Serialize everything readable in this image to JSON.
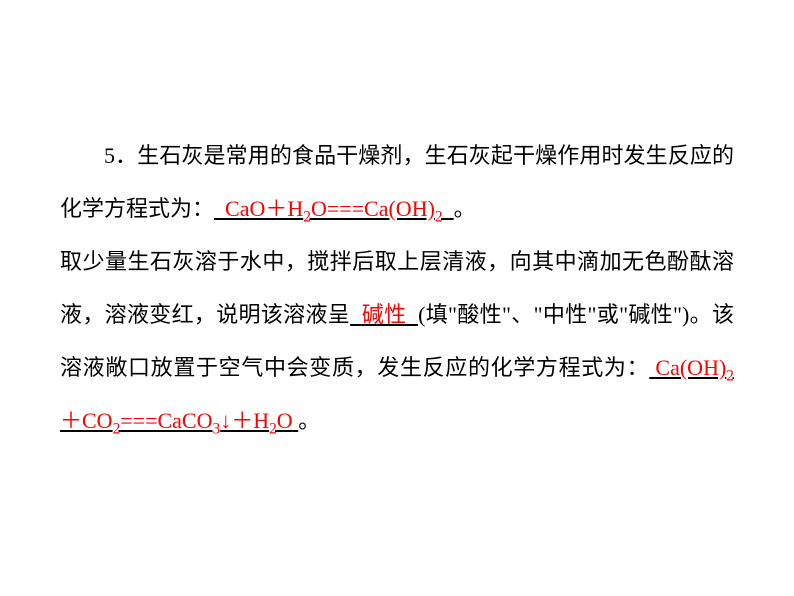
{
  "question": {
    "number": "5．",
    "part1_before": "生石灰是常用的食品干燥剂，生石灰起干燥作用时发生反应的化学方程式为：",
    "part1_after": "。",
    "part2_before": "取少量生石灰溶于水中，搅拌后取上层清液，向其中滴加无色酚酞溶液，溶液变红，说明该溶液呈",
    "part2_after": "(填\"酸性\"、\"中性\"或\"碱性\")。该溶液敞口放置于空气中会变质，发生反应的化学方程式为：",
    "part3_after": "。"
  },
  "answers": {
    "equation1_prefix": "CaO＋H",
    "equation1_sub1": "2",
    "equation1_mid": "O===Ca(OH)",
    "equation1_sub2": "2",
    "blank2": "碱性",
    "equation2_prefix": "Ca(OH)",
    "equation2_sub1": "2",
    "equation2_mid1": "＋CO",
    "equation2_sub2": "2",
    "equation2_mid2": "===CaCO",
    "equation2_sub3": "3",
    "equation2_mid3": "↓＋H",
    "equation2_sub4": "2",
    "equation2_suffix": "O"
  },
  "blanks": {
    "blank2_underline": "________"
  },
  "colors": {
    "text": "#000000",
    "answer": "#ff0000",
    "background": "#ffffff"
  },
  "typography": {
    "font_family": "SimSun",
    "font_size": 22,
    "line_height": 2.4
  }
}
